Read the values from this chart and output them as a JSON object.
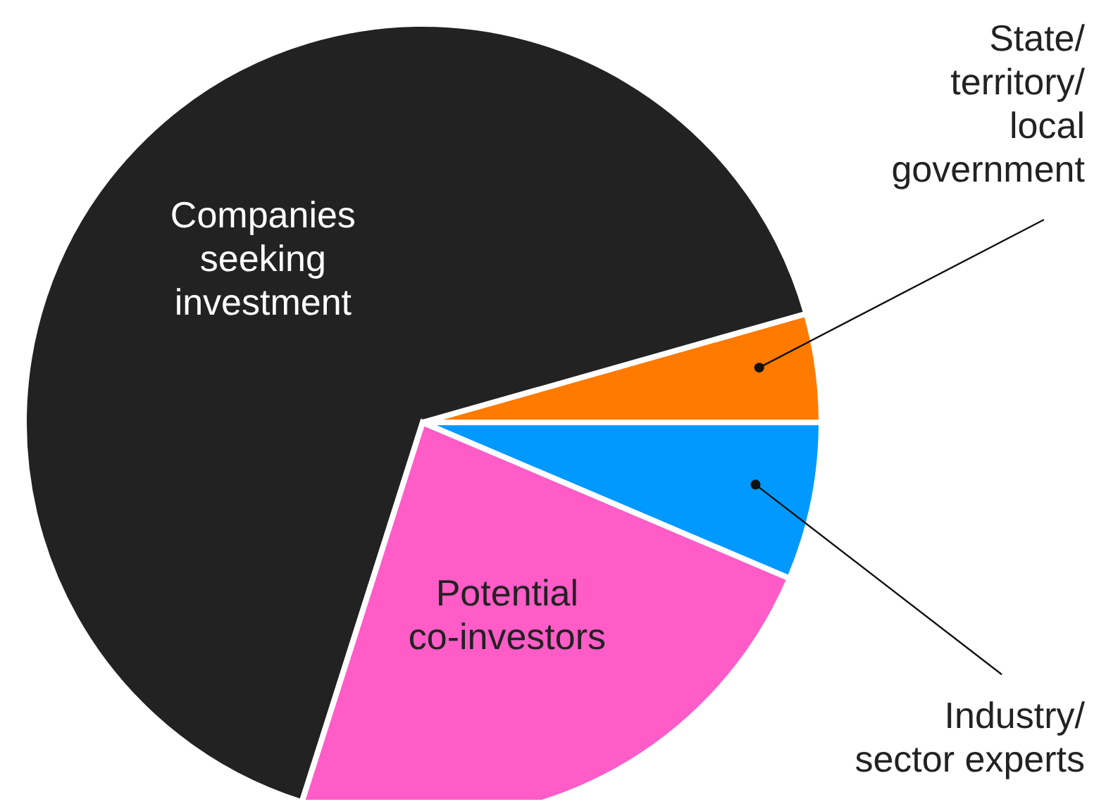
{
  "chart_data": {
    "type": "pie",
    "categories": [
      "State/territory/local government",
      "Companies seeking investment",
      "Potential co-investors",
      "Industry/sector experts"
    ],
    "values": [
      4.4,
      65.7,
      23.5,
      6.4
    ],
    "colors": [
      "#ff7a00",
      "#222222",
      "#ff5cc8",
      "#0099ff"
    ]
  }
}
